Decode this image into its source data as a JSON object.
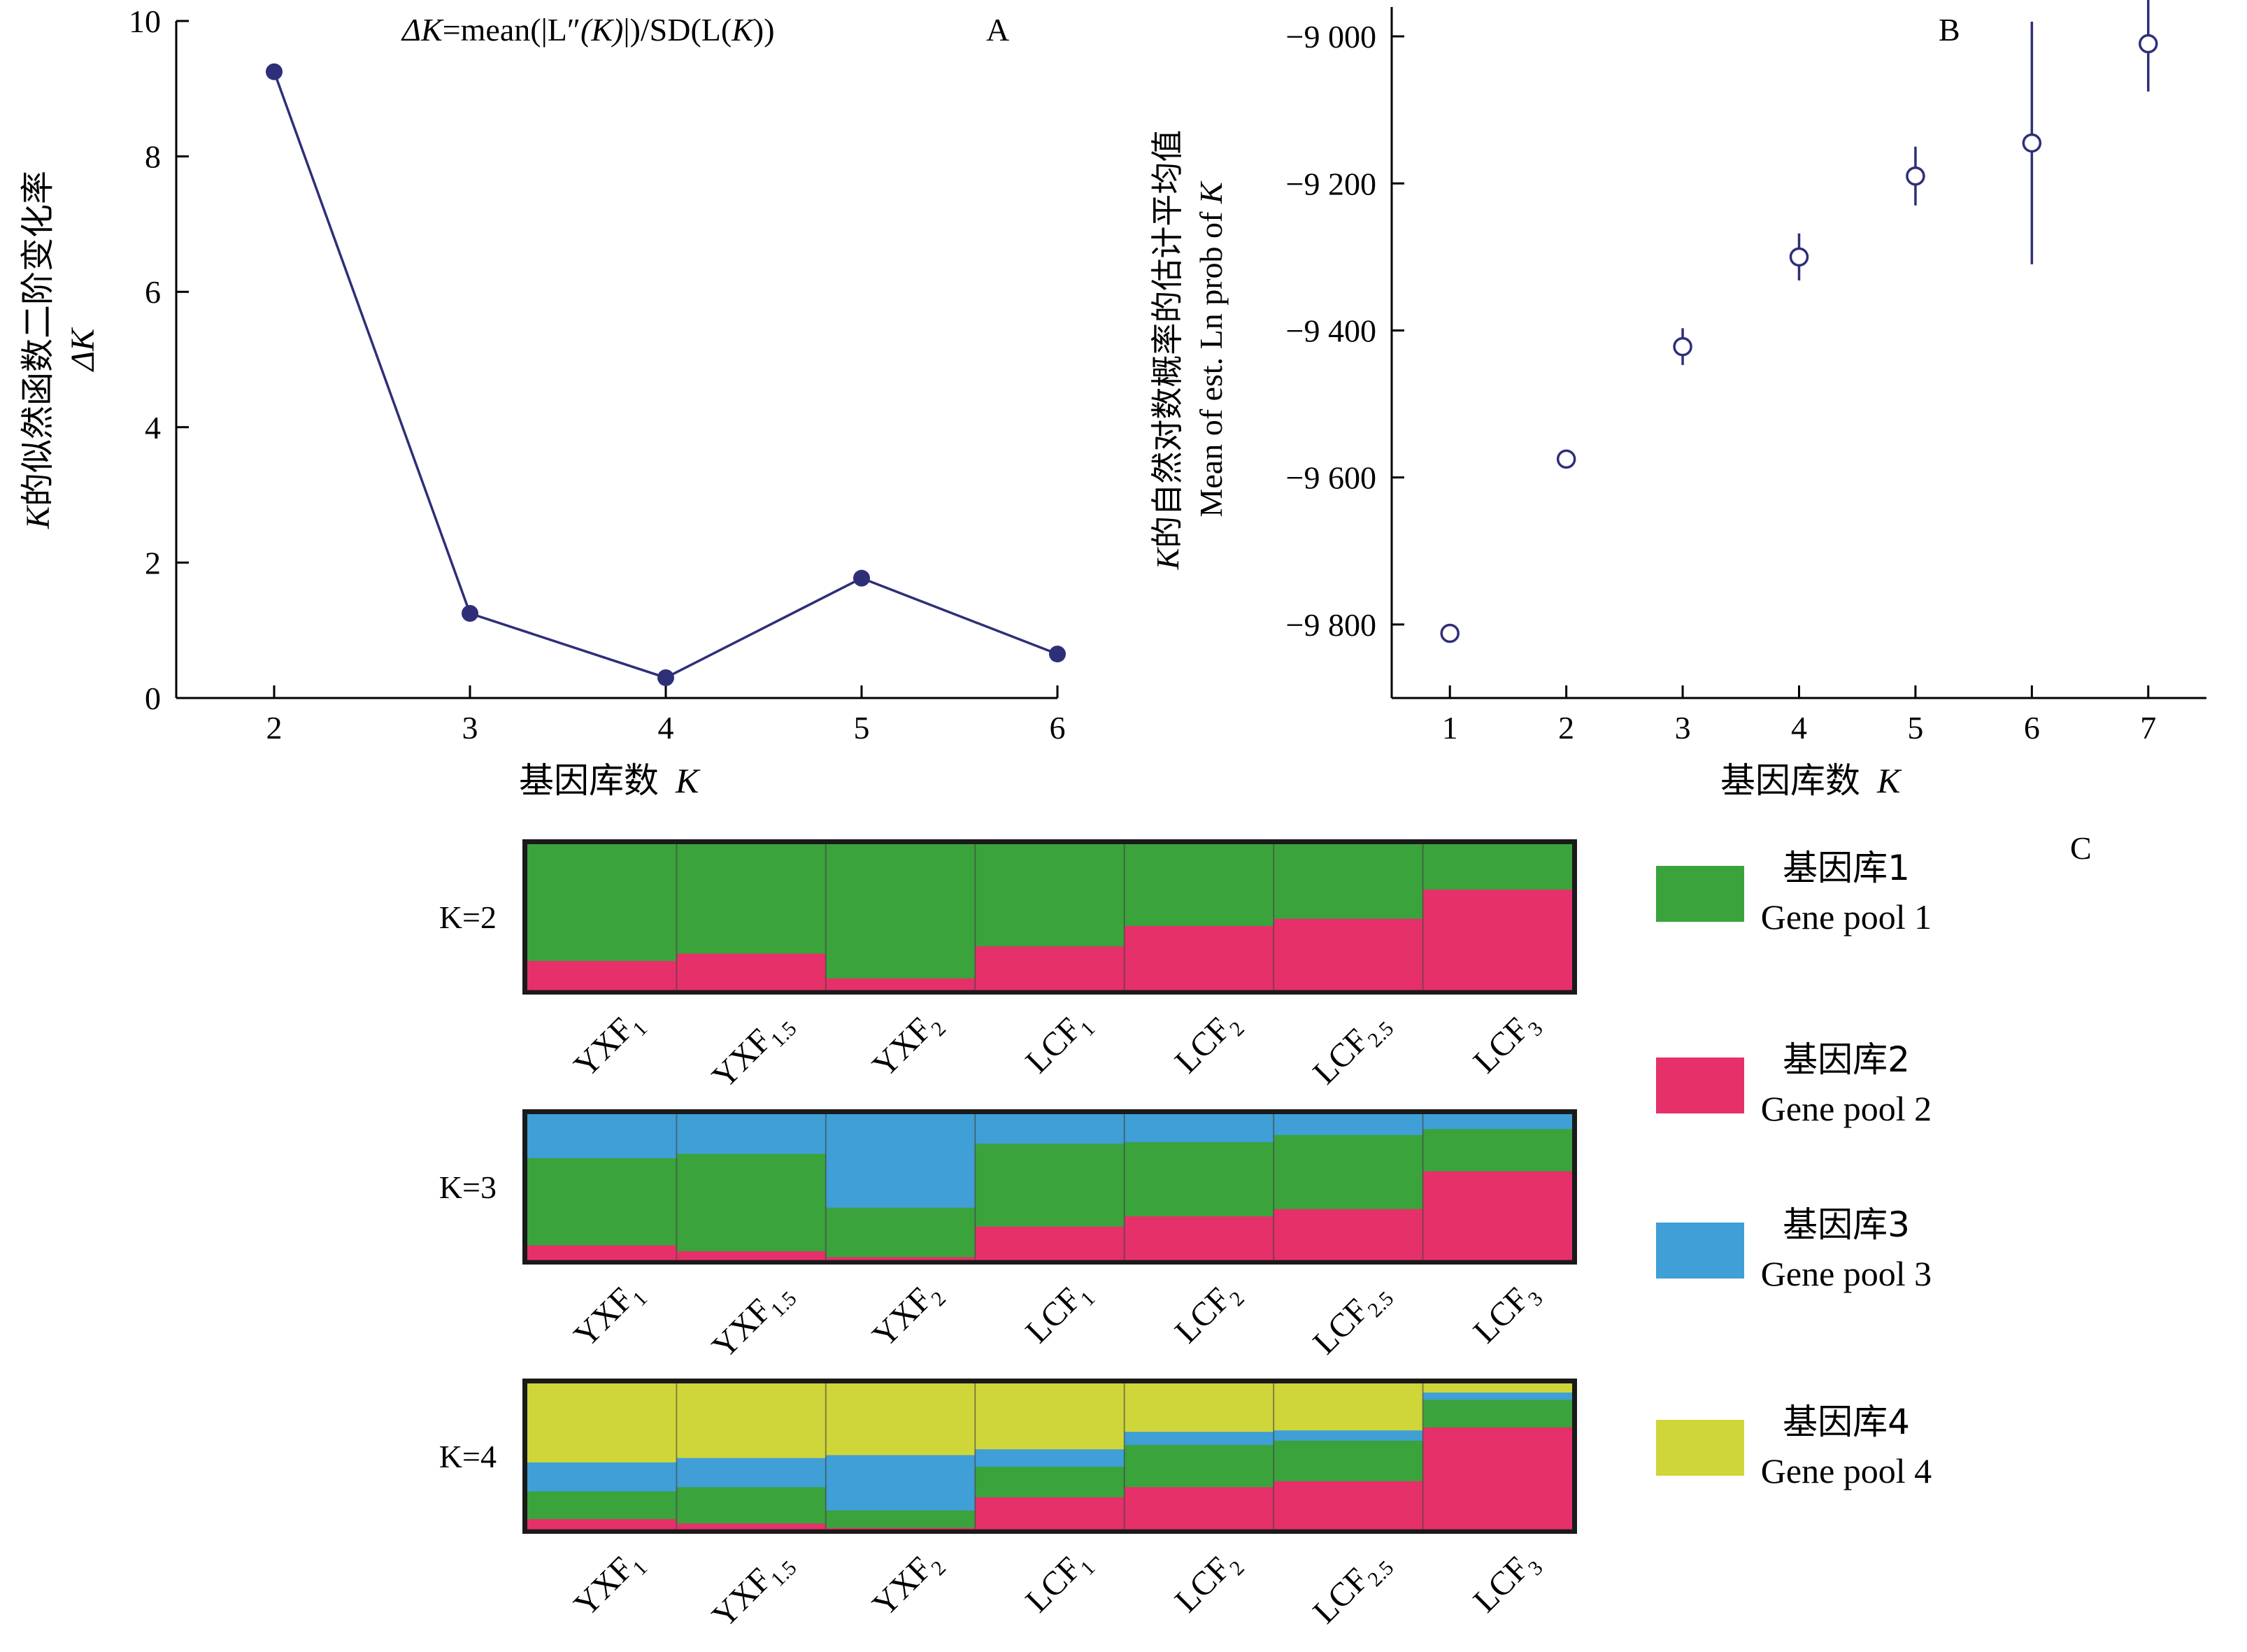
{
  "colors": {
    "line": "#2e2f78",
    "axis": "#000000",
    "gene_pool_1": "#3aa33c",
    "gene_pool_2": "#e6306a",
    "gene_pool_3": "#3f9fd6",
    "gene_pool_4": "#cfd63a",
    "frame": "#1a1a1a"
  },
  "chart_data": [
    {
      "panel": "A",
      "type": "line",
      "annotation": {
        "delta": "ΔK",
        "eq": "=mean(|L",
        "dprime": "″",
        "arg": "(K)",
        "mid": "|)/SD(L(",
        "k": "K",
        "end": "))"
      },
      "xlabel": {
        "cn": "基因库数",
        "k": "K"
      },
      "ylabel": {
        "cn": "的似然函数二阶变化率",
        "k": "K",
        "sub": "ΔK"
      },
      "x": [
        2,
        3,
        4,
        5,
        6
      ],
      "y": [
        9.25,
        1.25,
        0.3,
        1.77,
        0.65
      ],
      "xlim": [
        1.5,
        6
      ],
      "ylim": [
        0,
        10
      ],
      "xticks": [
        "2",
        "3",
        "4",
        "5",
        "6"
      ],
      "yticks": [
        "0",
        "2",
        "4",
        "6",
        "8",
        "10"
      ],
      "marker": "filled-circle",
      "grid": false
    },
    {
      "panel": "B",
      "type": "scatter",
      "xlabel": {
        "cn": "基因库数",
        "k": "K"
      },
      "ylabel": {
        "cn": "的自然对数概率的估计平均值",
        "k": "K",
        "en": "Mean of est. Ln prob of ",
        "en_k": "K"
      },
      "x": [
        1,
        2,
        3,
        4,
        5,
        6,
        7
      ],
      "y": [
        -9812,
        -9575,
        -9422,
        -9300,
        -9190,
        -9145,
        -9010
      ],
      "err": [
        0,
        8,
        25,
        32,
        40,
        165,
        65
      ],
      "xlim": [
        0.5,
        7.5
      ],
      "ylim": [
        -9900,
        -8960
      ],
      "xticks": [
        "1",
        "2",
        "3",
        "4",
        "5",
        "6",
        "7"
      ],
      "yticks": [
        "−9 000",
        "−9 200",
        "−9 400",
        "−9 600",
        "−9 800"
      ],
      "ytick_values": [
        -9000,
        -9200,
        -9400,
        -9600,
        -9800
      ],
      "marker": "open-circle",
      "grid": false
    },
    {
      "panel": "C",
      "type": "bar",
      "stacked": true,
      "categories": [
        {
          "base": "YXF",
          "sub": "1"
        },
        {
          "base": "YXF",
          "sub": "1.5"
        },
        {
          "base": "YXF",
          "sub": "2"
        },
        {
          "base": "LCF",
          "sub": "1"
        },
        {
          "base": "LCF",
          "sub": "2"
        },
        {
          "base": "LCF",
          "sub": "2.5"
        },
        {
          "base": "LCF",
          "sub": "3"
        }
      ],
      "rows": [
        {
          "label": "K=2",
          "order_bottom_to_top": [
            2,
            1
          ],
          "values": [
            [
              0.2,
              0.8
            ],
            [
              0.25,
              0.75
            ],
            [
              0.08,
              0.92
            ],
            [
              0.3,
              0.7
            ],
            [
              0.44,
              0.56
            ],
            [
              0.49,
              0.51
            ],
            [
              0.69,
              0.31
            ]
          ]
        },
        {
          "label": "K=3",
          "order_bottom_to_top": [
            2,
            1,
            3
          ],
          "values": [
            [
              0.1,
              0.6,
              0.3
            ],
            [
              0.06,
              0.67,
              0.27
            ],
            [
              0.02,
              0.34,
              0.64
            ],
            [
              0.23,
              0.57,
              0.2
            ],
            [
              0.3,
              0.51,
              0.19
            ],
            [
              0.35,
              0.51,
              0.14
            ],
            [
              0.61,
              0.29,
              0.1
            ]
          ]
        },
        {
          "label": "K=4",
          "order_bottom_to_top": [
            2,
            1,
            3,
            4
          ],
          "values": [
            [
              0.07,
              0.19,
              0.2,
              0.54
            ],
            [
              0.04,
              0.25,
              0.2,
              0.51
            ],
            [
              0.01,
              0.12,
              0.38,
              0.49
            ],
            [
              0.22,
              0.21,
              0.12,
              0.45
            ],
            [
              0.29,
              0.29,
              0.09,
              0.33
            ],
            [
              0.33,
              0.28,
              0.07,
              0.32
            ],
            [
              0.7,
              0.19,
              0.05,
              0.06
            ]
          ]
        }
      ],
      "legend": [
        {
          "cn": "基因库1",
          "en": "Gene pool 1",
          "color_key": "gene_pool_1"
        },
        {
          "cn": "基因库2",
          "en": "Gene pool 2",
          "color_key": "gene_pool_2"
        },
        {
          "cn": "基因库3",
          "en": "Gene pool 3",
          "color_key": "gene_pool_3"
        },
        {
          "cn": "基因库4",
          "en": "Gene pool 4",
          "color_key": "gene_pool_4"
        }
      ],
      "legend_position": "right"
    }
  ],
  "panel_labels": {
    "a": "A",
    "b": "B",
    "c": "C"
  }
}
